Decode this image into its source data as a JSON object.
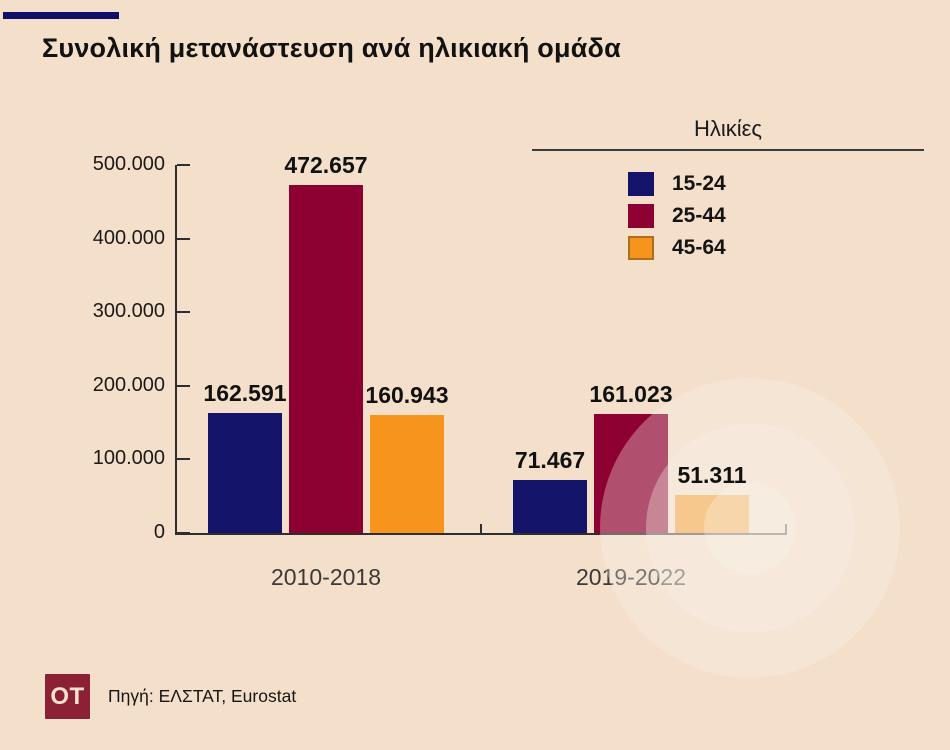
{
  "accent_color": "#10106a",
  "background_color": "#f4dfca",
  "title": "Συνολική μετανάστευση ανά ηλικιακή ομάδα",
  "legend": {
    "title": "Ηλικίες",
    "items": [
      {
        "label": "15-24",
        "color": "#14146a"
      },
      {
        "label": "25-44",
        "color": "#8c0132"
      },
      {
        "label": "45-64",
        "color": "#f7941e",
        "border": "#a8701f"
      }
    ]
  },
  "chart_data": {
    "type": "bar",
    "title": "Συνολική μετανάστευση ανά ηλικιακή ομάδα",
    "categories": [
      "2010-2018",
      "2019-2022"
    ],
    "series": [
      {
        "name": "15-24",
        "color": "#14146a",
        "values": [
          162591,
          71467
        ],
        "value_labels": [
          "162.591",
          "71.467"
        ]
      },
      {
        "name": "25-44",
        "color": "#8c0132",
        "values": [
          472657,
          161023
        ],
        "value_labels": [
          "472.657",
          "161.023"
        ]
      },
      {
        "name": "45-64",
        "color": "#f7941e",
        "values": [
          160943,
          51311
        ],
        "value_labels": [
          "160.943",
          "51.311"
        ]
      }
    ],
    "ylim": [
      0,
      500000
    ],
    "yticks": [
      {
        "value": 0,
        "label": "0"
      },
      {
        "value": 100000,
        "label": "100.000"
      },
      {
        "value": 200000,
        "label": "200.000"
      },
      {
        "value": 300000,
        "label": "300.000"
      },
      {
        "value": 400000,
        "label": "400.000"
      },
      {
        "value": 500000,
        "label": "500.000"
      }
    ],
    "legend_title": "Ηλικίες",
    "grid": false,
    "legend_position": "top-right"
  },
  "footer": {
    "logo_text": "OT",
    "logo_color": "#8c2135",
    "source": "Πηγή: ΕΛΣΤΑΤ, Eurostat"
  }
}
